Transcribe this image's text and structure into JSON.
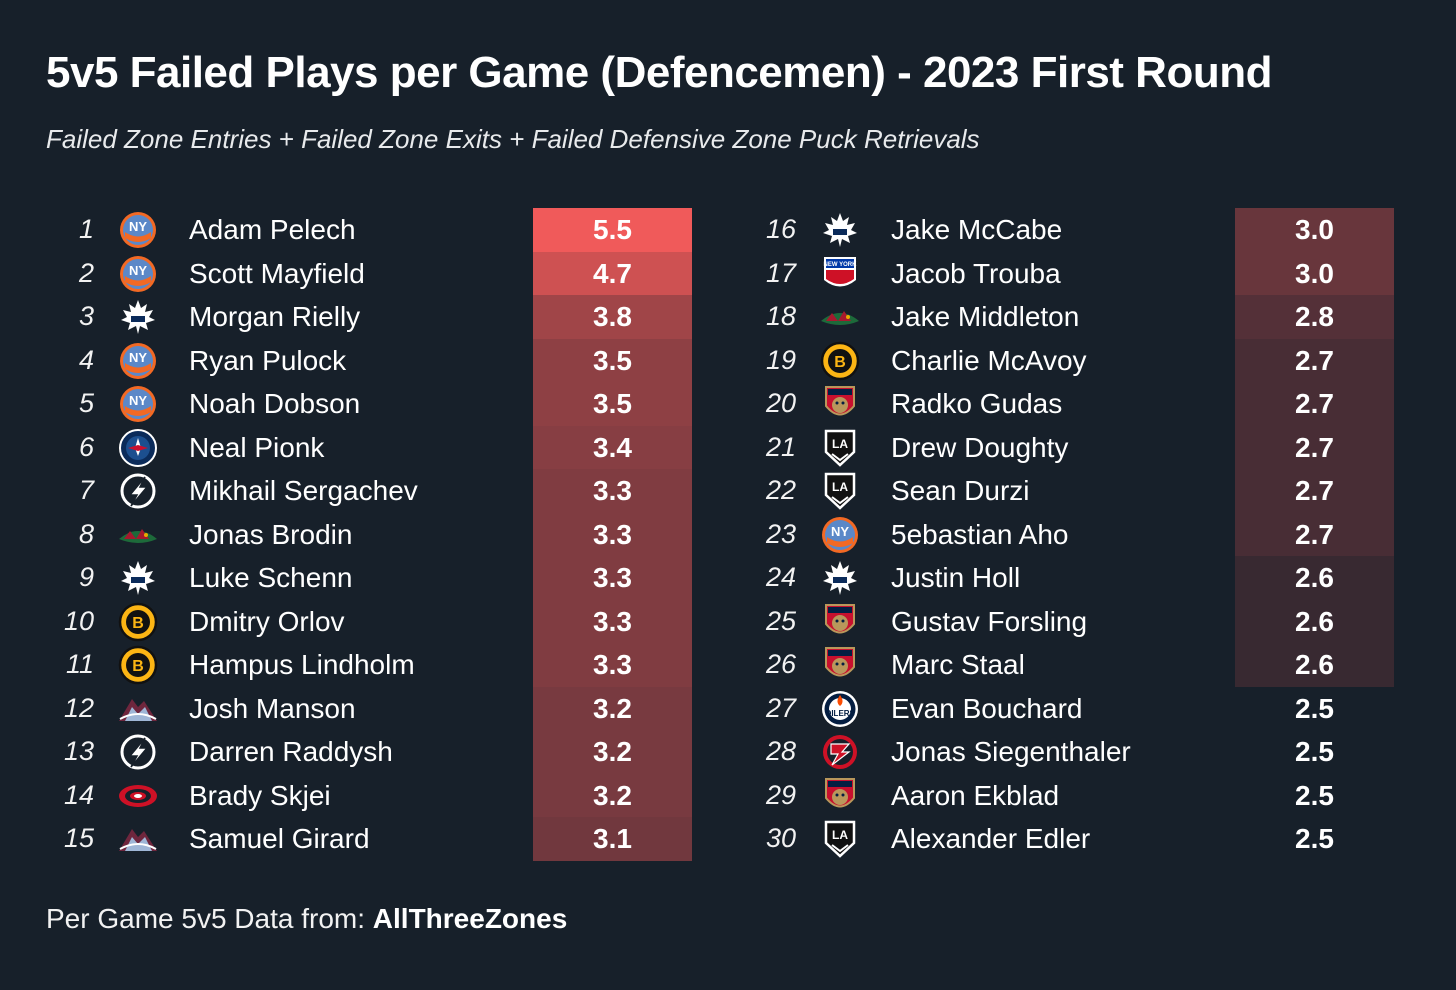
{
  "title": "5v5 Failed Plays per Game (Defencemen) - 2023 First Round",
  "subtitle": "Failed Zone Entries + Failed Zone Exits + Failed Defensive Zone Puck Retrievals",
  "footer": {
    "prefix": "Per Game 5v5 Data from:",
    "source": "AllThreeZones"
  },
  "colors": {
    "background": "#17202a",
    "max_cell": "#f05a5a",
    "min_cell": "#17202a"
  },
  "chart_data": {
    "type": "table",
    "title": "5v5 Failed Plays per Game (Defencemen) - 2023 First Round",
    "subtitle": "Failed Zone Entries + Failed Zone Exits + Failed Defensive Zone Puck Retrievals",
    "columns": [
      "rank",
      "team_logo",
      "player",
      "value"
    ],
    "value_range": [
      2.5,
      5.5
    ],
    "rows": [
      {
        "rank": "1",
        "team": "islanders-logo",
        "player": "Adam Pelech",
        "value": "5.5"
      },
      {
        "rank": "2",
        "team": "islanders-logo",
        "player": "Scott Mayfield",
        "value": "4.7"
      },
      {
        "rank": "3",
        "team": "maple-leafs-logo",
        "player": "Morgan Rielly",
        "value": "3.8"
      },
      {
        "rank": "4",
        "team": "islanders-logo",
        "player": "Ryan Pulock",
        "value": "3.5"
      },
      {
        "rank": "5",
        "team": "islanders-logo",
        "player": "Noah Dobson",
        "value": "3.5"
      },
      {
        "rank": "6",
        "team": "jets-logo",
        "player": "Neal Pionk",
        "value": "3.4"
      },
      {
        "rank": "7",
        "team": "lightning-logo",
        "player": "Mikhail Sergachev",
        "value": "3.3"
      },
      {
        "rank": "8",
        "team": "wild-logo",
        "player": "Jonas Brodin",
        "value": "3.3"
      },
      {
        "rank": "9",
        "team": "maple-leafs-logo",
        "player": "Luke Schenn",
        "value": "3.3"
      },
      {
        "rank": "10",
        "team": "bruins-logo",
        "player": "Dmitry Orlov",
        "value": "3.3"
      },
      {
        "rank": "11",
        "team": "bruins-logo",
        "player": "Hampus Lindholm",
        "value": "3.3"
      },
      {
        "rank": "12",
        "team": "avalanche-logo",
        "player": "Josh Manson",
        "value": "3.2"
      },
      {
        "rank": "13",
        "team": "lightning-logo",
        "player": "Darren Raddysh",
        "value": "3.2"
      },
      {
        "rank": "14",
        "team": "hurricanes-logo",
        "player": "Brady Skjei",
        "value": "3.2"
      },
      {
        "rank": "15",
        "team": "avalanche-logo",
        "player": "Samuel Girard",
        "value": "3.1"
      },
      {
        "rank": "16",
        "team": "maple-leafs-logo",
        "player": "Jake McCabe",
        "value": "3.0"
      },
      {
        "rank": "17",
        "team": "rangers-logo",
        "player": "Jacob Trouba",
        "value": "3.0"
      },
      {
        "rank": "18",
        "team": "wild-logo",
        "player": "Jake Middleton",
        "value": "2.8"
      },
      {
        "rank": "19",
        "team": "bruins-logo",
        "player": "Charlie McAvoy",
        "value": "2.7"
      },
      {
        "rank": "20",
        "team": "panthers-logo",
        "player": "Radko Gudas",
        "value": "2.7"
      },
      {
        "rank": "21",
        "team": "kings-logo",
        "player": "Drew Doughty",
        "value": "2.7"
      },
      {
        "rank": "22",
        "team": "kings-logo",
        "player": "Sean Durzi",
        "value": "2.7"
      },
      {
        "rank": "23",
        "team": "islanders-logo",
        "player": "5ebastian Aho",
        "value": "2.7"
      },
      {
        "rank": "24",
        "team": "maple-leafs-logo",
        "player": "Justin Holl",
        "value": "2.6"
      },
      {
        "rank": "25",
        "team": "panthers-logo",
        "player": "Gustav Forsling",
        "value": "2.6"
      },
      {
        "rank": "26",
        "team": "panthers-logo",
        "player": "Marc Staal",
        "value": "2.6"
      },
      {
        "rank": "27",
        "team": "oilers-logo",
        "player": "Evan Bouchard",
        "value": "2.5"
      },
      {
        "rank": "28",
        "team": "devils-logo",
        "player": "Jonas Siegenthaler",
        "value": "2.5"
      },
      {
        "rank": "29",
        "team": "panthers-logo",
        "player": "Aaron Ekblad",
        "value": "2.5"
      },
      {
        "rank": "30",
        "team": "kings-logo",
        "player": "Alexander Edler",
        "value": "2.5"
      }
    ]
  }
}
